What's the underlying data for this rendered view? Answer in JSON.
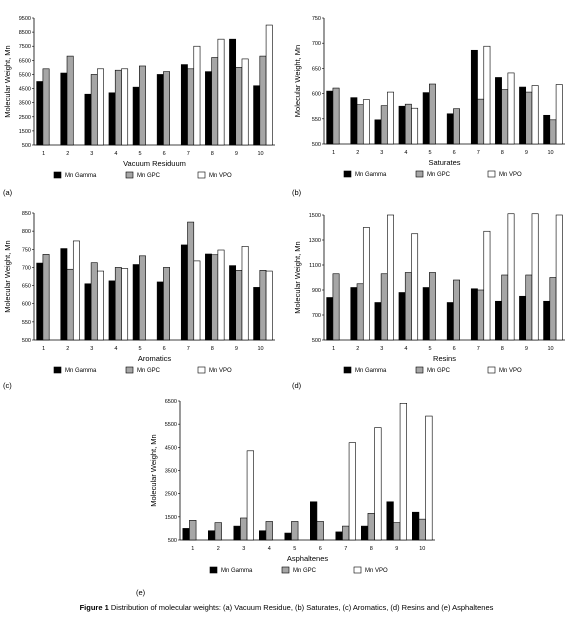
{
  "caption": {
    "label": "Figure 1",
    "text": "Distribution of molecular weights: (a) Vacuum Residue, (b) Saturates, (c) Aromatics, (d) Resins and (e) Asphaltenes"
  },
  "colors": {
    "gamma": "#000000",
    "gpc": "#a6a6a6",
    "vpo": "#ffffff"
  },
  "chart_data": [
    {
      "type": "bar",
      "panel_label": "(a)",
      "xlabel": "Vacuum Residuum",
      "ylabel": "Molecular Weight, Mn",
      "ylim": [
        500,
        9500
      ],
      "yticks": [
        "500",
        "1500",
        "2500",
        "3500",
        "4500",
        "5500",
        "6500",
        "7500",
        "8500",
        "9500"
      ],
      "categories": [
        "1",
        "2",
        "3",
        "4",
        "5",
        "6",
        "7",
        "8",
        "9",
        "10"
      ],
      "series": [
        {
          "name": "Mn Gamma",
          "values": [
            5000,
            5600,
            4100,
            4200,
            4600,
            5500,
            6200,
            5700,
            8000,
            4700
          ]
        },
        {
          "name": "Mn GPC",
          "values": [
            5900,
            6800,
            5500,
            5800,
            6100,
            5700,
            5900,
            6700,
            6000,
            6800
          ]
        },
        {
          "name": "Mn VPO",
          "values": [
            null,
            null,
            5900,
            5900,
            null,
            null,
            7500,
            8000,
            6600,
            9000
          ]
        }
      ]
    },
    {
      "type": "bar",
      "panel_label": "(b)",
      "xlabel": "Saturates",
      "ylabel": "Molecular Weight, Mn",
      "ylim": [
        500,
        750
      ],
      "yticks": [
        "500",
        "550",
        "600",
        "650",
        "700",
        "750"
      ],
      "categories": [
        "1",
        "2",
        "3",
        "4",
        "5",
        "6",
        "7",
        "8",
        "9",
        "10"
      ],
      "series": [
        {
          "name": "Mn Gamma",
          "values": [
            605,
            592,
            548,
            575,
            602,
            560,
            686,
            632,
            613,
            557
          ]
        },
        {
          "name": "Mn GPC",
          "values": [
            611,
            578,
            576,
            579,
            619,
            570,
            589,
            608,
            603,
            548
          ]
        },
        {
          "name": "Mn VPO",
          "values": [
            null,
            588,
            603,
            571,
            null,
            null,
            694,
            641,
            616,
            618
          ]
        }
      ]
    },
    {
      "type": "bar",
      "panel_label": "(c)",
      "xlabel": "Aromatics",
      "ylabel": "Molecular Weight, Mn",
      "ylim": [
        500,
        850
      ],
      "yticks": [
        "500",
        "550",
        "600",
        "650",
        "700",
        "750",
        "800",
        "850"
      ],
      "categories": [
        "1",
        "2",
        "3",
        "4",
        "5",
        "6",
        "7",
        "8",
        "9",
        "10"
      ],
      "series": [
        {
          "name": "Mn Gamma",
          "values": [
            712,
            752,
            655,
            663,
            708,
            660,
            762,
            737,
            705,
            645
          ]
        },
        {
          "name": "Mn GPC",
          "values": [
            736,
            695,
            713,
            700,
            732,
            700,
            825,
            735,
            692,
            692
          ]
        },
        {
          "name": "Mn VPO",
          "values": [
            null,
            773,
            690,
            697,
            null,
            null,
            718,
            748,
            758,
            690
          ]
        }
      ]
    },
    {
      "type": "bar",
      "panel_label": "(d)",
      "xlabel": "Resins",
      "ylabel": "Molecular Weight, Mn",
      "ylim": [
        500,
        1500
      ],
      "yticks": [
        "500",
        "700",
        "900",
        "1100",
        "1300",
        "1500"
      ],
      "categories": [
        "1",
        "2",
        "3",
        "4",
        "5",
        "6",
        "7",
        "8",
        "9",
        "10"
      ],
      "series": [
        {
          "name": "Mn Gamma",
          "values": [
            840,
            920,
            800,
            880,
            920,
            800,
            910,
            810,
            850,
            810
          ]
        },
        {
          "name": "Mn GPC",
          "values": [
            1030,
            950,
            1030,
            1040,
            1040,
            980,
            900,
            1020,
            1020,
            1000
          ]
        },
        {
          "name": "Mn VPO",
          "values": [
            null,
            1400,
            1500,
            1350,
            null,
            null,
            1370,
            1510,
            1510,
            1500
          ]
        }
      ]
    },
    {
      "type": "bar",
      "panel_label": "(e)",
      "xlabel": "Asphaltenes",
      "ylabel": "Molecular Weight, Mn",
      "ylim": [
        500,
        6500
      ],
      "yticks": [
        "500",
        "1500",
        "2500",
        "3500",
        "4500",
        "5500",
        "6500"
      ],
      "categories": [
        "1",
        "2",
        "3",
        "4",
        "5",
        "6",
        "7",
        "8",
        "9",
        "10"
      ],
      "series": [
        {
          "name": "Mn Gamma",
          "values": [
            1000,
            900,
            1100,
            900,
            800,
            2150,
            850,
            1100,
            2150,
            1700
          ]
        },
        {
          "name": "Mn GPC",
          "values": [
            1350,
            1250,
            1450,
            1300,
            1300,
            1300,
            1100,
            1650,
            1250,
            1400
          ]
        },
        {
          "name": "Mn VPO",
          "values": [
            null,
            null,
            4350,
            null,
            null,
            null,
            4700,
            5350,
            6400,
            5850
          ]
        }
      ]
    }
  ]
}
